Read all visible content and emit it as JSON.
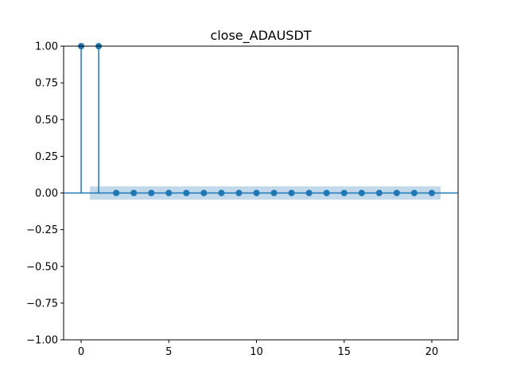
{
  "chart_data": {
    "type": "stem",
    "title": "close_ADAUSDT",
    "xlabel": "",
    "ylabel": "",
    "xlim": [
      -1,
      21.5
    ],
    "ylim": [
      -1.0,
      1.0
    ],
    "x_ticks": [
      0,
      5,
      10,
      15,
      20
    ],
    "y_ticks": [
      1.0,
      0.75,
      0.5,
      0.25,
      0.0,
      -0.25,
      -0.5,
      -0.75,
      -1.0
    ],
    "y_tick_labels": [
      "1.00",
      "0.75",
      "0.50",
      "0.25",
      "0.00",
      "−0.25",
      "−0.50",
      "−0.75",
      "−1.00"
    ],
    "x_tick_labels": [
      "0",
      "5",
      "10",
      "15",
      "20"
    ],
    "lags": [
      0,
      1,
      2,
      3,
      4,
      5,
      6,
      7,
      8,
      9,
      10,
      11,
      12,
      13,
      14,
      15,
      16,
      17,
      18,
      19,
      20
    ],
    "values": [
      1.0,
      1.0,
      0,
      0,
      0,
      0,
      0,
      0,
      0,
      0,
      0,
      0,
      0,
      0,
      0,
      0,
      0,
      0,
      0,
      0,
      0
    ],
    "confidence_band": {
      "x_range": [
        0.5,
        20.5
      ],
      "upper": 0.045,
      "lower": -0.045
    },
    "grid": false,
    "colors": {
      "stem": "#1f77b4",
      "band": "#1f77b4",
      "zero_line": "#1f77b4"
    }
  }
}
